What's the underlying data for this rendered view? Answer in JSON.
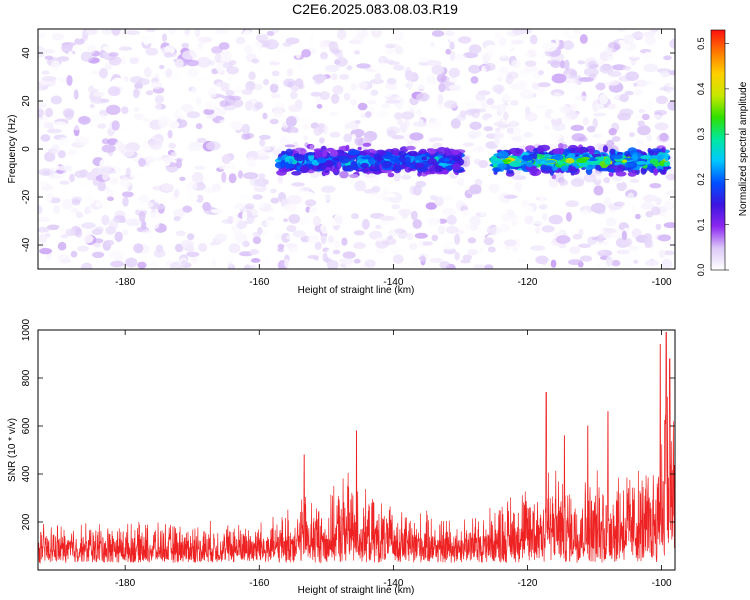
{
  "title": "C2E6.2025.083.08.03.R19",
  "chart_data": [
    {
      "type": "heatmap",
      "xlabel": "Height of straight line (km)",
      "ylabel": "Frequency (Hz)",
      "xlim": [
        -193,
        -98
      ],
      "ylim": [
        -50,
        50
      ],
      "xticks": [
        -180,
        -160,
        -140,
        -120,
        -100
      ],
      "yticks": [
        -40,
        -20,
        0,
        20,
        40
      ],
      "colorbar": {
        "label": "Normalized spectral amplitude",
        "range": [
          0,
          0.53
        ],
        "ticks": [
          0.0,
          0.1,
          0.2,
          0.3,
          0.4,
          0.5
        ],
        "tick_labels": [
          "0.0",
          "0.1",
          "0.2",
          "0.3",
          "0.4",
          "0.5"
        ],
        "colors": [
          "#ffffff",
          "#dcc8f8",
          "#8c28f0",
          "#3c14e0",
          "#0050ff",
          "#00c8ff",
          "#00e8a0",
          "#30e000",
          "#c8e800",
          "#ffd000",
          "#ff7800",
          "#ff1010"
        ]
      },
      "background_amplitude_range": [
        0.0,
        0.06
      ],
      "signal_bands": [
        {
          "x_start": -157,
          "x_end": -130,
          "freq_center": -5,
          "freq_halfwidth": 7,
          "peak_amplitude": 0.32
        },
        {
          "x_start": -125,
          "x_end": -99,
          "freq_center": -5,
          "freq_halfwidth": 7,
          "peak_amplitude": 0.45
        }
      ]
    },
    {
      "type": "line",
      "xlabel": "Height of straight line (km)",
      "ylabel": "SNR (10 * v/v)",
      "xlim": [
        -193,
        -98
      ],
      "ylim": [
        0,
        1000
      ],
      "xticks": [
        -180,
        -160,
        -140,
        -120,
        -100
      ],
      "yticks": [
        200,
        400,
        600,
        800,
        1000
      ],
      "series": [
        {
          "color": "#ee2222",
          "envelope_x": [
            -193,
            -185,
            -175,
            -165,
            -157,
            -153,
            -150,
            -147,
            -144,
            -140,
            -135,
            -130,
            -126,
            -122,
            -120,
            -117,
            -114,
            -110,
            -106,
            -103,
            -101,
            -100,
            -99.5,
            -99,
            -98
          ],
          "envelope_y": [
            150,
            160,
            155,
            160,
            175,
            260,
            220,
            330,
            250,
            210,
            190,
            180,
            200,
            270,
            280,
            360,
            300,
            320,
            350,
            330,
            380,
            500,
            700,
            620,
            540
          ],
          "peaks": [
            {
              "x": -117.2,
              "y": 740
            },
            {
              "x": -108,
              "y": 660
            },
            {
              "x": -145.5,
              "y": 580
            },
            {
              "x": -100.2,
              "y": 940
            },
            {
              "x": -99.3,
              "y": 990
            },
            {
              "x": -98.8,
              "y": 880
            },
            {
              "x": -153.3,
              "y": 480
            },
            {
              "x": -111,
              "y": 600
            },
            {
              "x": -114.5,
              "y": 560
            }
          ]
        }
      ]
    }
  ]
}
